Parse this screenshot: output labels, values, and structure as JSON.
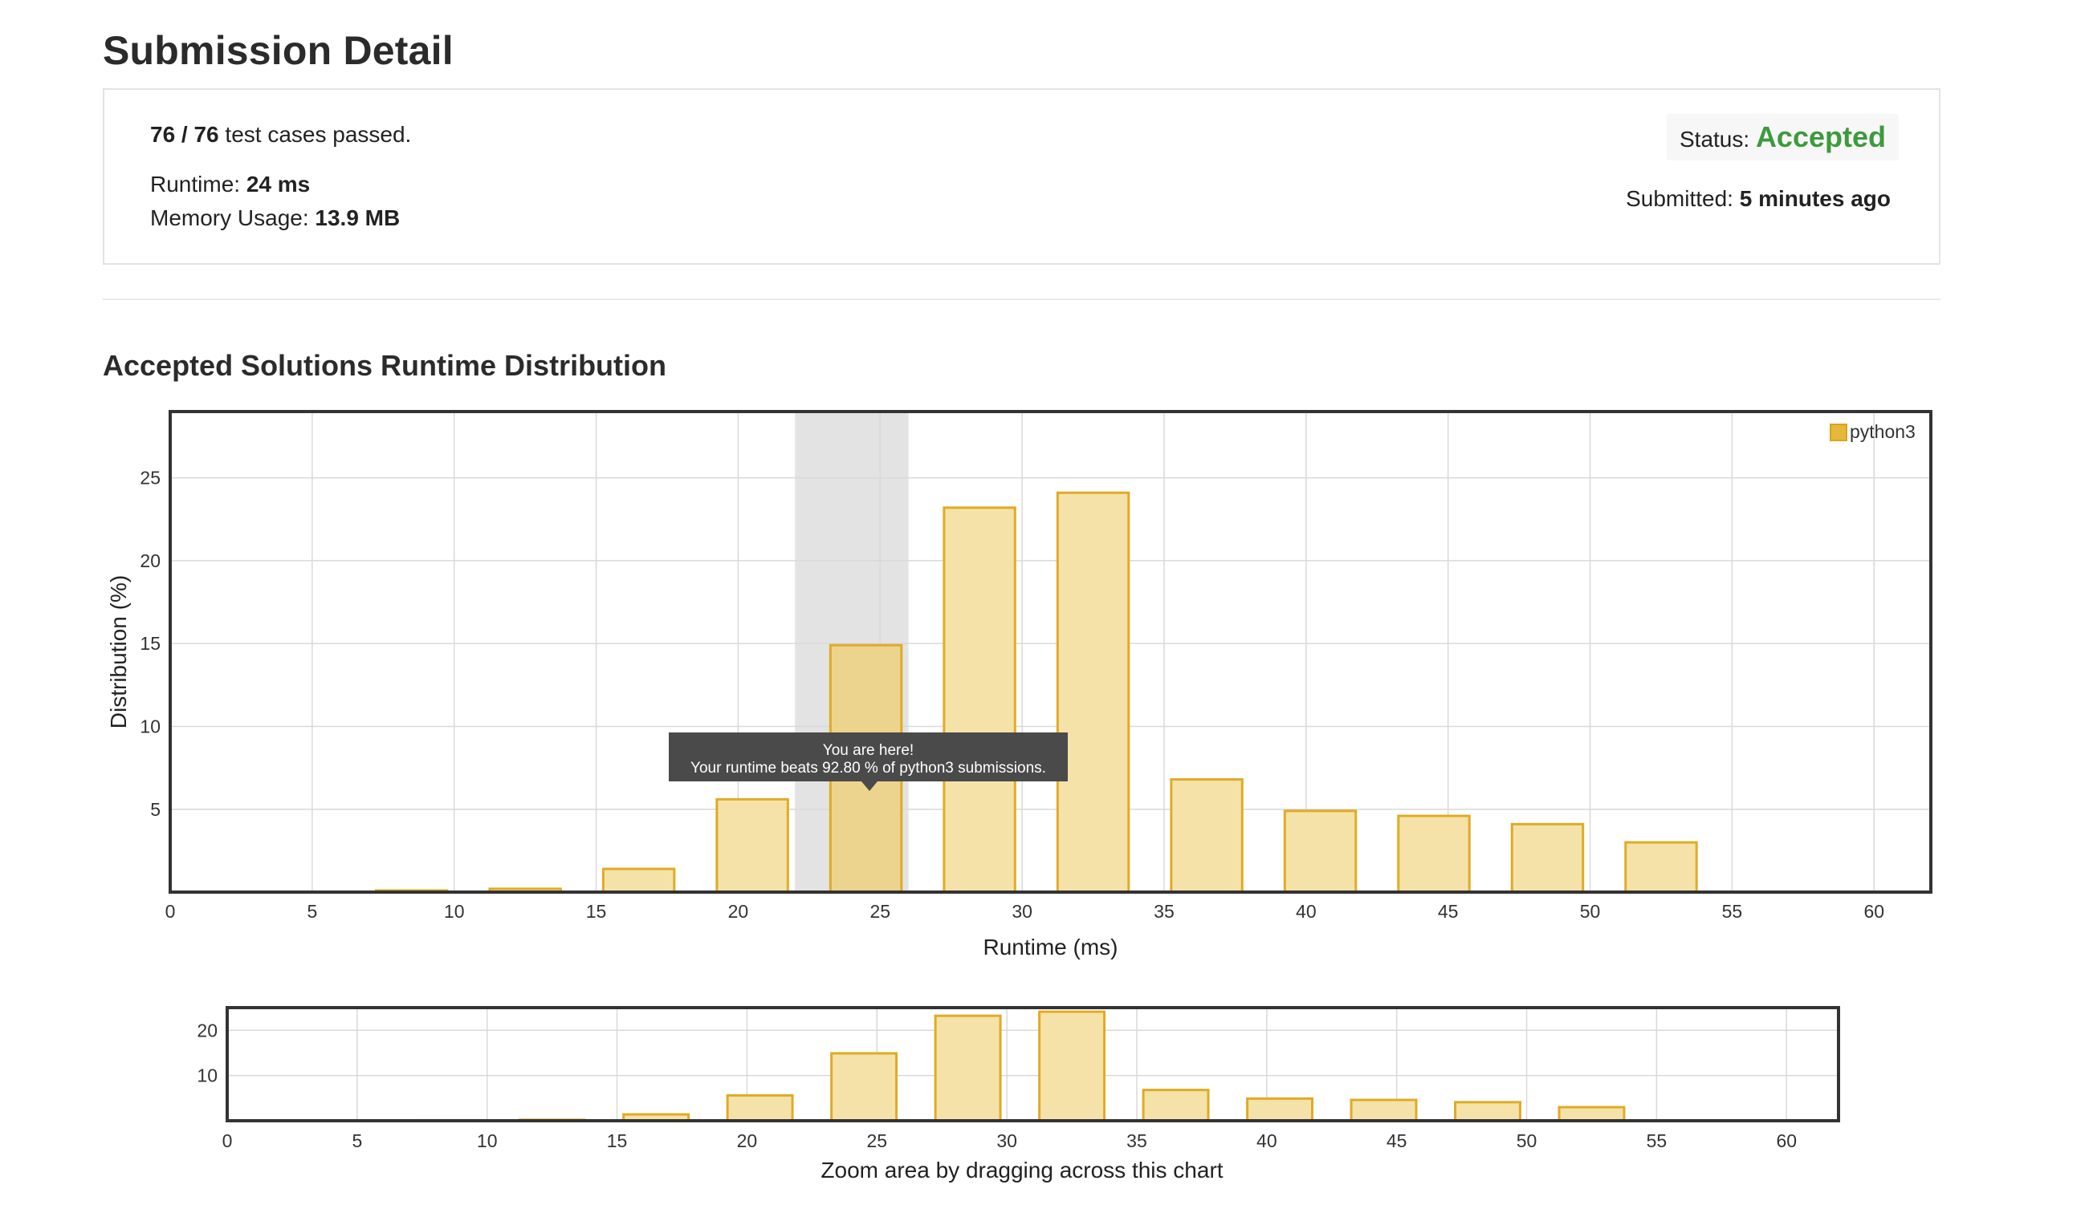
{
  "page": {
    "title": "Submission Detail"
  },
  "submission": {
    "tests_passed": "76 / 76",
    "tests_suffix": " test cases passed.",
    "runtime_label": "Runtime: ",
    "runtime_value": "24 ms",
    "memory_label": "Memory Usage: ",
    "memory_value": "13.9 MB",
    "status_label": "Status: ",
    "status_value": "Accepted",
    "submitted_label": "Submitted: ",
    "submitted_value": "5 minutes ago",
    "status_color": "#3d9a3d"
  },
  "section": {
    "title": "Accepted Solutions Runtime Distribution"
  },
  "tooltip": {
    "line1": "You are here!",
    "line2": "Your runtime beats 92.80 % of python3 submissions."
  },
  "navigator": {
    "caption": "Zoom area by dragging across this chart"
  },
  "colors": {
    "bar_fill": "#f5e2a8",
    "bar_stroke": "#e0ab25",
    "highlight_band": "#e3e3e3",
    "grid": "#d9d9d9",
    "frame": "#333333"
  },
  "chart_data": [
    {
      "type": "bar",
      "xlabel": "Runtime (ms)",
      "ylabel": "Distribution (%)",
      "xlim": [
        0,
        62
      ],
      "ylim": [
        0,
        29
      ],
      "x_ticks": [
        0,
        5,
        10,
        15,
        20,
        25,
        30,
        35,
        40,
        45,
        50,
        55,
        60
      ],
      "y_ticks": [
        5,
        10,
        15,
        20,
        25
      ],
      "grid": true,
      "legend_position": "top-right",
      "highlight_range": [
        22,
        26
      ],
      "series": [
        {
          "name": "python3",
          "x": [
            8.5,
            12.5,
            16.5,
            20.5,
            24.5,
            28.5,
            32.5,
            36.5,
            40.5,
            44.5,
            48.5,
            52.5
          ],
          "values": [
            0.1,
            0.2,
            1.4,
            5.6,
            14.9,
            23.2,
            24.1,
            6.8,
            4.9,
            4.6,
            4.1,
            3.0
          ]
        }
      ],
      "highlight_bar_x": 24.5
    },
    {
      "type": "bar",
      "xlim": [
        0,
        62
      ],
      "ylim": [
        0,
        25
      ],
      "x_ticks": [
        0,
        5,
        10,
        15,
        20,
        25,
        30,
        35,
        40,
        45,
        50,
        55,
        60
      ],
      "y_ticks": [
        10,
        20
      ],
      "grid": true,
      "series": [
        {
          "x": [
            8.5,
            12.5,
            16.5,
            20.5,
            24.5,
            28.5,
            32.5,
            36.5,
            40.5,
            44.5,
            48.5,
            52.5
          ],
          "values": [
            0.1,
            0.2,
            1.4,
            5.6,
            14.9,
            23.2,
            24.1,
            6.8,
            4.9,
            4.6,
            4.1,
            3.0
          ]
        }
      ]
    }
  ]
}
